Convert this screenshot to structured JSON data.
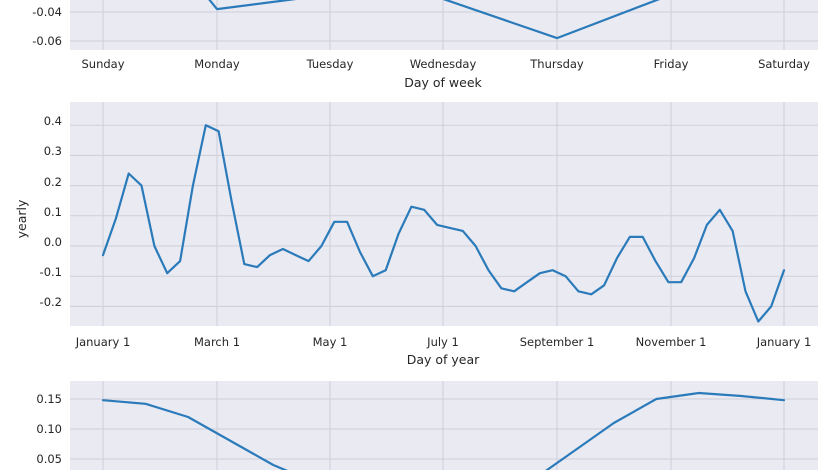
{
  "chart_data": [
    {
      "type": "line",
      "xlabel": "Day of week",
      "ylabel": "",
      "categories": [
        "Sunday",
        "Monday",
        "Tuesday",
        "Wednesday",
        "Thursday",
        "Friday",
        "Saturday"
      ],
      "series": [
        {
          "values": [
            null,
            -0.038,
            -0.028,
            -0.031,
            -0.058,
            -0.028,
            null
          ]
        }
      ],
      "yticks": [
        "-0.04",
        "-0.06"
      ],
      "ylim": [
        -0.065,
        -0.03
      ],
      "grid": true
    },
    {
      "type": "line",
      "xlabel": "Day of year",
      "ylabel": "yearly",
      "xticks": [
        "January 1",
        "March 1",
        "May 1",
        "July 1",
        "September 1",
        "November 1",
        "January 1"
      ],
      "x_day_of_year": [
        0,
        5,
        10,
        15,
        20,
        25,
        30,
        35,
        40,
        45,
        50,
        55,
        60,
        65,
        70,
        75,
        80,
        85,
        90,
        95,
        100,
        105,
        110,
        115,
        120,
        125,
        130,
        135,
        140,
        145,
        150,
        155,
        160,
        165,
        170,
        175,
        180,
        185,
        190,
        195,
        200,
        205,
        210,
        215,
        220,
        225,
        230,
        235,
        240,
        245,
        250,
        255,
        260,
        265,
        270,
        275,
        280,
        285,
        290,
        295,
        300,
        305,
        310,
        315,
        320,
        325,
        330,
        335,
        340,
        345,
        350,
        355,
        360,
        365
      ],
      "series": [
        {
          "values": [
            -0.03,
            0.09,
            0.24,
            0.2,
            0.0,
            -0.09,
            -0.05,
            0.2,
            0.4,
            0.38,
            0.15,
            -0.06,
            -0.07,
            -0.03,
            -0.01,
            -0.03,
            -0.05,
            0.0,
            0.08,
            0.08,
            -0.02,
            -0.1,
            -0.08,
            0.04,
            0.13,
            0.12,
            0.07,
            0.06,
            0.05,
            0.0,
            -0.08,
            -0.14,
            -0.15,
            -0.12,
            -0.09,
            -0.08,
            -0.1,
            -0.15,
            -0.16,
            -0.13,
            -0.04,
            0.03,
            0.03,
            -0.05,
            -0.12,
            -0.12,
            -0.04,
            0.07,
            0.12,
            0.05,
            -0.15,
            -0.25,
            -0.2,
            -0.08,
            null,
            null,
            null,
            null,
            null,
            null,
            null,
            null,
            null,
            null,
            null,
            null,
            null,
            null,
            null,
            null,
            null,
            null,
            null,
            null
          ]
        }
      ],
      "yticks": [
        "0.4",
        "0.3",
        "0.2",
        "0.1",
        "0.0",
        "-0.1",
        "-0.2"
      ],
      "ylim": [
        -0.27,
        0.44
      ],
      "grid": true
    },
    {
      "type": "line",
      "xlabel": "",
      "ylabel": "",
      "series": [
        {
          "values": [
            0.148,
            0.142,
            0.12,
            0.08,
            0.04,
            0.01,
            null,
            null,
            null,
            null,
            0.01,
            0.06,
            0.11,
            0.15,
            0.16,
            0.155,
            0.148
          ]
        }
      ],
      "yticks": [
        "0.15",
        "0.10",
        "0.05"
      ],
      "ylim": [
        0.0,
        0.17
      ],
      "grid": true
    }
  ]
}
